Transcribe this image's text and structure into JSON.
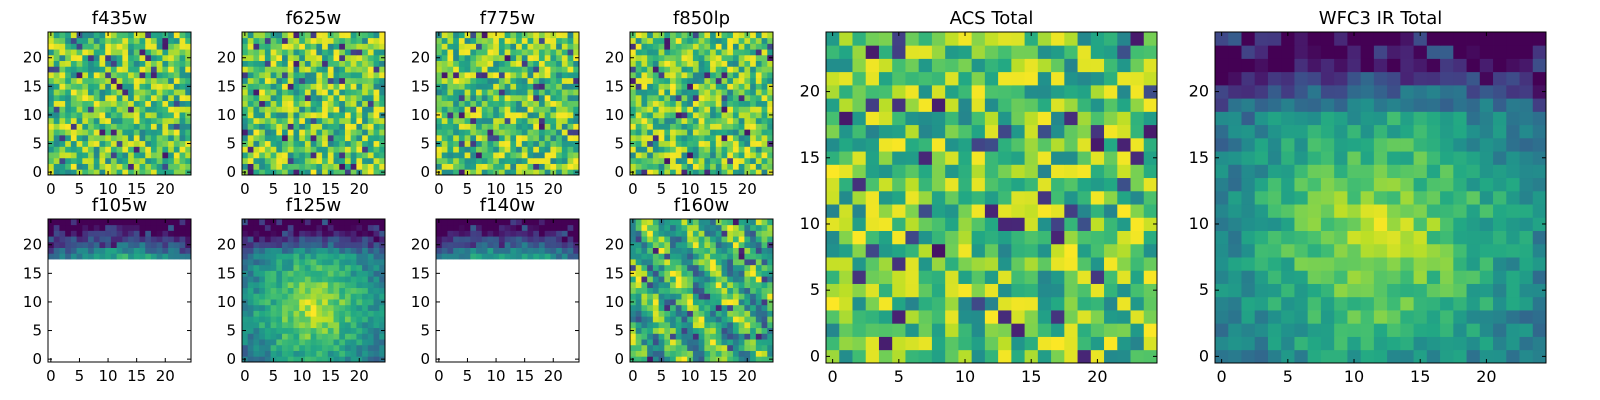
{
  "figure": {
    "colormap": "viridis",
    "missing_color": "#ffffff"
  },
  "chart_data": [
    {
      "type": "heatmap",
      "title": "f435w",
      "xlim": [
        -0.5,
        24.5
      ],
      "ylim": [
        -0.5,
        24.5
      ],
      "xticks": [
        0,
        5,
        10,
        15,
        20
      ],
      "yticks": [
        0,
        5,
        10,
        15,
        20
      ],
      "xticklabels": [
        "0",
        "5",
        "10",
        "15",
        "20"
      ],
      "yticklabels": [
        "0",
        "5",
        "10",
        "15",
        "20"
      ],
      "grid_size": [
        25,
        25
      ],
      "pattern": "random-noise",
      "seed": 11,
      "contrast": 0.9,
      "blank_below_row": null
    },
    {
      "type": "heatmap",
      "title": "f625w",
      "xlim": [
        -0.5,
        24.5
      ],
      "ylim": [
        -0.5,
        24.5
      ],
      "xticks": [
        0,
        5,
        10,
        15,
        20
      ],
      "yticks": [
        0,
        5,
        10,
        15,
        20
      ],
      "xticklabels": [
        "0",
        "5",
        "10",
        "15",
        "20"
      ],
      "yticklabels": [
        "0",
        "5",
        "10",
        "15",
        "20"
      ],
      "grid_size": [
        25,
        25
      ],
      "pattern": "random-noise",
      "seed": 23,
      "contrast": 0.85,
      "blank_below_row": null
    },
    {
      "type": "heatmap",
      "title": "f775w",
      "xlim": [
        -0.5,
        24.5
      ],
      "ylim": [
        -0.5,
        24.5
      ],
      "xticks": [
        0,
        5,
        10,
        15,
        20
      ],
      "yticks": [
        0,
        5,
        10,
        15,
        20
      ],
      "xticklabels": [
        "0",
        "5",
        "10",
        "15",
        "20"
      ],
      "yticklabels": [
        "0",
        "5",
        "10",
        "15",
        "20"
      ],
      "grid_size": [
        25,
        25
      ],
      "pattern": "random-noise",
      "seed": 37,
      "contrast": 0.9,
      "blank_below_row": null
    },
    {
      "type": "heatmap",
      "title": "f850lp",
      "xlim": [
        -0.5,
        24.5
      ],
      "ylim": [
        -0.5,
        24.5
      ],
      "xticks": [
        0,
        5,
        10,
        15,
        20
      ],
      "yticks": [
        0,
        5,
        10,
        15,
        20
      ],
      "xticklabels": [
        "0",
        "5",
        "10",
        "15",
        "20"
      ],
      "yticklabels": [
        "0",
        "5",
        "10",
        "15",
        "20"
      ],
      "grid_size": [
        25,
        25
      ],
      "pattern": "random-noise",
      "seed": 41,
      "contrast": 0.9,
      "blank_below_row": null
    },
    {
      "type": "heatmap",
      "title": "f105w",
      "xlim": [
        -0.5,
        24.5
      ],
      "ylim": [
        -0.5,
        24.5
      ],
      "xticks": [
        0,
        5,
        10,
        15,
        20
      ],
      "yticks": [
        0,
        5,
        10,
        15,
        20
      ],
      "xticklabels": [
        "0",
        "5",
        "10",
        "15",
        "20"
      ],
      "yticklabels": [
        "0",
        "5",
        "10",
        "15",
        "20"
      ],
      "grid_size": [
        25,
        25
      ],
      "pattern": "smooth-gradient",
      "seed": 53,
      "contrast": 0.8,
      "blank_below_row": 18
    },
    {
      "type": "heatmap",
      "title": "f125w",
      "xlim": [
        -0.5,
        24.5
      ],
      "ylim": [
        -0.5,
        24.5
      ],
      "xticks": [
        0,
        5,
        10,
        15,
        20
      ],
      "yticks": [
        0,
        5,
        10,
        15,
        20
      ],
      "xticklabels": [
        "0",
        "5",
        "10",
        "15",
        "20"
      ],
      "yticklabels": [
        "0",
        "5",
        "10",
        "15",
        "20"
      ],
      "grid_size": [
        25,
        25
      ],
      "pattern": "smooth-gradient",
      "seed": 67,
      "contrast": 0.7,
      "blank_below_row": null
    },
    {
      "type": "heatmap",
      "title": "f140w",
      "xlim": [
        -0.5,
        24.5
      ],
      "ylim": [
        -0.5,
        24.5
      ],
      "xticks": [
        0,
        5,
        10,
        15,
        20
      ],
      "yticks": [
        0,
        5,
        10,
        15,
        20
      ],
      "xticklabels": [
        "0",
        "5",
        "10",
        "15",
        "20"
      ],
      "yticklabels": [
        "0",
        "5",
        "10",
        "15",
        "20"
      ],
      "grid_size": [
        25,
        25
      ],
      "pattern": "smooth-gradient",
      "seed": 79,
      "contrast": 0.8,
      "blank_below_row": 18
    },
    {
      "type": "heatmap",
      "title": "f160w",
      "xlim": [
        -0.5,
        24.5
      ],
      "ylim": [
        -0.5,
        24.5
      ],
      "xticks": [
        0,
        5,
        10,
        15,
        20
      ],
      "yticks": [
        0,
        5,
        10,
        15,
        20
      ],
      "xticklabels": [
        "0",
        "5",
        "10",
        "15",
        "20"
      ],
      "yticklabels": [
        "0",
        "5",
        "10",
        "15",
        "20"
      ],
      "grid_size": [
        25,
        25
      ],
      "pattern": "smooth-noise",
      "seed": 83,
      "contrast": 0.75,
      "blank_below_row": null
    },
    {
      "type": "heatmap",
      "title": "ACS Total",
      "xlim": [
        -0.5,
        24.5
      ],
      "ylim": [
        -0.5,
        24.5
      ],
      "xticks": [
        0,
        5,
        10,
        15,
        20
      ],
      "yticks": [
        0,
        5,
        10,
        15,
        20
      ],
      "xticklabels": [
        "0",
        "5",
        "10",
        "15",
        "20"
      ],
      "yticklabels": [
        "0",
        "5",
        "10",
        "15",
        "20"
      ],
      "grid_size": [
        25,
        25
      ],
      "pattern": "random-noise",
      "seed": 97,
      "contrast": 0.8,
      "blank_below_row": null
    },
    {
      "type": "heatmap",
      "title": "WFC3 IR Total",
      "xlim": [
        -0.5,
        24.5
      ],
      "ylim": [
        -0.5,
        24.5
      ],
      "xticks": [
        0,
        5,
        10,
        15,
        20
      ],
      "yticks": [
        0,
        5,
        10,
        15,
        20
      ],
      "xticklabels": [
        "0",
        "5",
        "10",
        "15",
        "20"
      ],
      "yticklabels": [
        "0",
        "5",
        "10",
        "15",
        "20"
      ],
      "grid_size": [
        25,
        25
      ],
      "pattern": "smooth-gradient",
      "seed": 101,
      "contrast": 0.75,
      "blank_below_row": null
    }
  ]
}
